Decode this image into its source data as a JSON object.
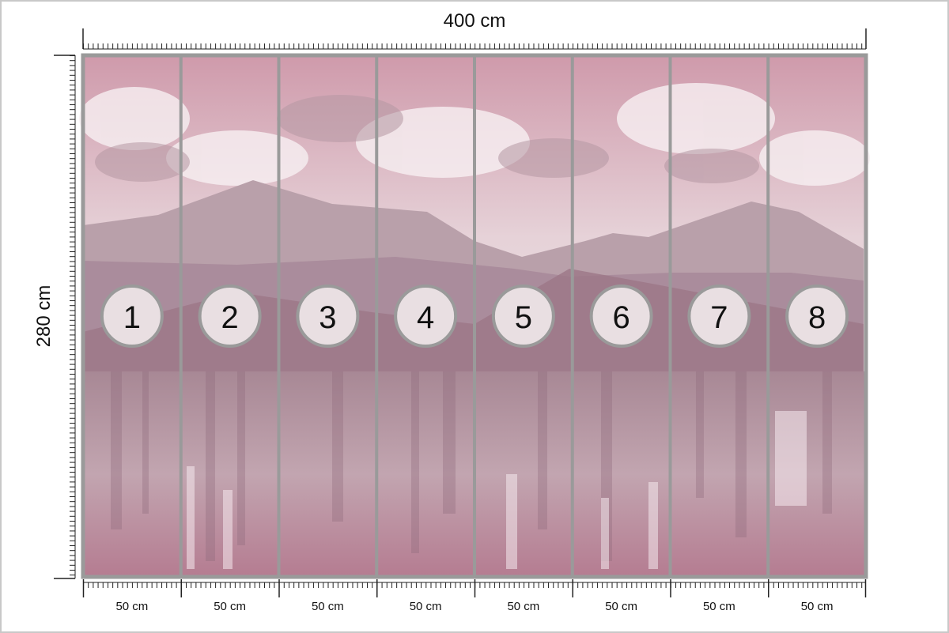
{
  "width_label": "400 cm",
  "height_label": "280 cm",
  "panels": [
    {
      "number": "1",
      "width": "50 cm"
    },
    {
      "number": "2",
      "width": "50 cm"
    },
    {
      "number": "3",
      "width": "50 cm"
    },
    {
      "number": "4",
      "width": "50 cm"
    },
    {
      "number": "5",
      "width": "50 cm"
    },
    {
      "number": "6",
      "width": "50 cm"
    },
    {
      "number": "7",
      "width": "50 cm"
    },
    {
      "number": "8",
      "width": "50 cm"
    }
  ]
}
